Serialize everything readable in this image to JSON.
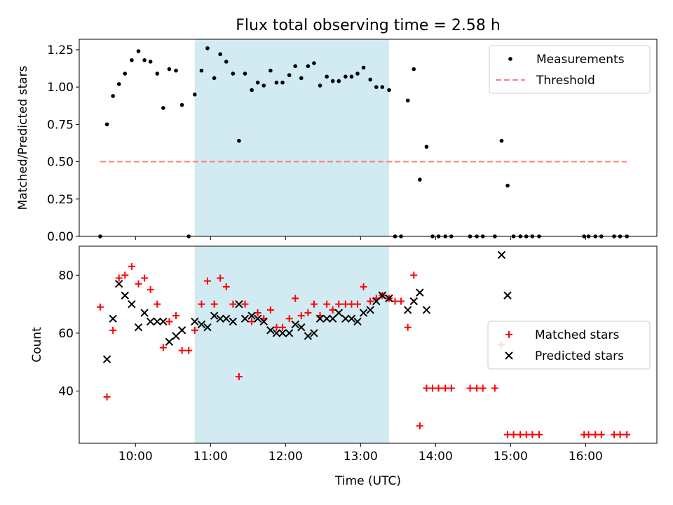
{
  "title": "Flux total observing time = 2.58 h",
  "chart_data": [
    {
      "type": "scatter",
      "title": "Flux total observing time = 2.58 h",
      "xlabel": "",
      "ylabel": "Matched/Predicted stars",
      "xlim": [
        9.25,
        16.95
      ],
      "ylim": [
        0,
        1.32
      ],
      "yticks": [
        0.0,
        0.25,
        0.5,
        0.75,
        1.0,
        1.25
      ],
      "ytick_labels": [
        "0.00",
        "0.25",
        "0.50",
        "0.75",
        "1.00",
        "1.25"
      ],
      "shaded_interval": {
        "x": [
          10.79,
          13.38
        ],
        "color": "#add8e6"
      },
      "legend": {
        "position": "top-right",
        "entries": [
          "Measurements",
          "Threshold"
        ]
      },
      "series": [
        {
          "name": "Measurements",
          "marker": "dot",
          "color": "#000000",
          "points": [
            [
              9.53,
              0.0
            ],
            [
              9.62,
              0.75
            ],
            [
              9.7,
              0.94
            ],
            [
              9.78,
              1.02
            ],
            [
              9.86,
              1.09
            ],
            [
              9.95,
              1.18
            ],
            [
              10.04,
              1.24
            ],
            [
              10.12,
              1.18
            ],
            [
              10.2,
              1.17
            ],
            [
              10.29,
              1.09
            ],
            [
              10.37,
              0.86
            ],
            [
              10.45,
              1.12
            ],
            [
              10.54,
              1.11
            ],
            [
              10.62,
              0.88
            ],
            [
              10.71,
              0.0
            ],
            [
              10.79,
              0.95
            ],
            [
              10.88,
              1.11
            ],
            [
              10.96,
              1.26
            ],
            [
              11.05,
              1.06
            ],
            [
              11.13,
              1.22
            ],
            [
              11.21,
              1.17
            ],
            [
              11.3,
              1.09
            ],
            [
              11.38,
              0.64
            ],
            [
              11.46,
              1.09
            ],
            [
              11.55,
              0.98
            ],
            [
              11.63,
              1.03
            ],
            [
              11.71,
              1.01
            ],
            [
              11.8,
              1.11
            ],
            [
              11.88,
              1.03
            ],
            [
              11.96,
              1.03
            ],
            [
              12.05,
              1.08
            ],
            [
              12.13,
              1.14
            ],
            [
              12.21,
              1.06
            ],
            [
              12.3,
              1.14
            ],
            [
              12.38,
              1.16
            ],
            [
              12.46,
              1.01
            ],
            [
              12.55,
              1.07
            ],
            [
              12.63,
              1.04
            ],
            [
              12.71,
              1.04
            ],
            [
              12.8,
              1.07
            ],
            [
              12.88,
              1.07
            ],
            [
              12.96,
              1.09
            ],
            [
              13.04,
              1.13
            ],
            [
              13.13,
              1.05
            ],
            [
              13.21,
              1.0
            ],
            [
              13.29,
              1.0
            ],
            [
              13.38,
              0.98
            ],
            [
              13.46,
              0.0
            ],
            [
              13.54,
              0.0
            ],
            [
              13.63,
              0.91
            ],
            [
              13.71,
              1.12
            ],
            [
              13.79,
              0.38
            ],
            [
              13.88,
              0.6
            ],
            [
              13.96,
              0.0
            ],
            [
              14.04,
              0.0
            ],
            [
              14.13,
              0.0
            ],
            [
              14.21,
              0.0
            ],
            [
              14.46,
              0.0
            ],
            [
              14.55,
              0.0
            ],
            [
              14.63,
              0.0
            ],
            [
              14.79,
              0.0
            ],
            [
              14.88,
              0.64
            ],
            [
              14.96,
              0.34
            ],
            [
              15.04,
              0.0
            ],
            [
              15.13,
              0.0
            ],
            [
              15.21,
              0.0
            ],
            [
              15.29,
              0.0
            ],
            [
              15.38,
              0.0
            ],
            [
              15.98,
              0.0
            ],
            [
              16.04,
              0.0
            ],
            [
              16.13,
              0.0
            ],
            [
              16.21,
              0.0
            ],
            [
              16.38,
              0.0
            ],
            [
              16.46,
              0.0
            ],
            [
              16.55,
              0.0
            ]
          ]
        },
        {
          "name": "Threshold",
          "style": "dashed",
          "color": "#ff7f7f",
          "x": [
            9.53,
            16.55
          ],
          "y": [
            0.5,
            0.5
          ]
        }
      ]
    },
    {
      "type": "scatter",
      "xlabel": "Time (UTC)",
      "ylabel": "Count",
      "xlim": [
        9.25,
        16.95
      ],
      "ylim": [
        22,
        90
      ],
      "yticks": [
        40,
        60,
        80
      ],
      "ytick_labels": [
        "40",
        "60",
        "80"
      ],
      "xticks": [
        10,
        11,
        12,
        13,
        14,
        15,
        16
      ],
      "xtick_labels": [
        "10:00",
        "11:00",
        "12:00",
        "13:00",
        "14:00",
        "15:00",
        "16:00"
      ],
      "shaded_interval": {
        "x": [
          10.79,
          13.38
        ],
        "color": "#add8e6"
      },
      "legend": {
        "position": "center-right",
        "entries": [
          "Matched stars",
          "Predicted stars"
        ]
      },
      "series": [
        {
          "name": "Matched stars",
          "marker": "plus",
          "color": "#ff0000",
          "points": [
            [
              9.53,
              69
            ],
            [
              9.62,
              38
            ],
            [
              9.7,
              61
            ],
            [
              9.78,
              79
            ],
            [
              9.86,
              80
            ],
            [
              9.95,
              83
            ],
            [
              10.04,
              77
            ],
            [
              10.12,
              79
            ],
            [
              10.2,
              75
            ],
            [
              10.29,
              70
            ],
            [
              10.37,
              55
            ],
            [
              10.45,
              64
            ],
            [
              10.54,
              66
            ],
            [
              10.62,
              54
            ],
            [
              10.71,
              54
            ],
            [
              10.79,
              61
            ],
            [
              10.88,
              70
            ],
            [
              10.96,
              78
            ],
            [
              11.05,
              70
            ],
            [
              11.13,
              79
            ],
            [
              11.21,
              76
            ],
            [
              11.3,
              70
            ],
            [
              11.38,
              45
            ],
            [
              11.46,
              70
            ],
            [
              11.55,
              64
            ],
            [
              11.63,
              67
            ],
            [
              11.71,
              65
            ],
            [
              11.8,
              68
            ],
            [
              11.88,
              62
            ],
            [
              11.96,
              62
            ],
            [
              12.05,
              65
            ],
            [
              12.13,
              72
            ],
            [
              12.21,
              66
            ],
            [
              12.3,
              67
            ],
            [
              12.38,
              70
            ],
            [
              12.46,
              66
            ],
            [
              12.55,
              70
            ],
            [
              12.63,
              68
            ],
            [
              12.71,
              70
            ],
            [
              12.8,
              70
            ],
            [
              12.88,
              70
            ],
            [
              12.96,
              70
            ],
            [
              13.04,
              76
            ],
            [
              13.13,
              71
            ],
            [
              13.21,
              72
            ],
            [
              13.29,
              73
            ],
            [
              13.38,
              72
            ],
            [
              13.46,
              71
            ],
            [
              13.54,
              71
            ],
            [
              13.63,
              62
            ],
            [
              13.71,
              80
            ],
            [
              13.79,
              28
            ],
            [
              13.88,
              41
            ],
            [
              13.96,
              41
            ],
            [
              14.04,
              41
            ],
            [
              14.13,
              41
            ],
            [
              14.21,
              41
            ],
            [
              14.46,
              41
            ],
            [
              14.55,
              41
            ],
            [
              14.63,
              41
            ],
            [
              14.79,
              41
            ],
            [
              14.88,
              56
            ],
            [
              14.96,
              25
            ],
            [
              15.04,
              25
            ],
            [
              15.13,
              25
            ],
            [
              15.21,
              25
            ],
            [
              15.29,
              25
            ],
            [
              15.38,
              25
            ],
            [
              15.98,
              25
            ],
            [
              16.04,
              25
            ],
            [
              16.13,
              25
            ],
            [
              16.21,
              25
            ],
            [
              16.38,
              25
            ],
            [
              16.46,
              25
            ],
            [
              16.55,
              25
            ]
          ]
        },
        {
          "name": "Predicted stars",
          "marker": "x",
          "color": "#000000",
          "points": [
            [
              9.62,
              51
            ],
            [
              9.7,
              65
            ],
            [
              9.78,
              77
            ],
            [
              9.86,
              73
            ],
            [
              9.95,
              70
            ],
            [
              10.04,
              62
            ],
            [
              10.12,
              67
            ],
            [
              10.2,
              64
            ],
            [
              10.29,
              64
            ],
            [
              10.37,
              64
            ],
            [
              10.45,
              57
            ],
            [
              10.54,
              59
            ],
            [
              10.62,
              61
            ],
            [
              10.79,
              64
            ],
            [
              10.88,
              63
            ],
            [
              10.96,
              62
            ],
            [
              11.05,
              66
            ],
            [
              11.13,
              65
            ],
            [
              11.21,
              65
            ],
            [
              11.3,
              64
            ],
            [
              11.38,
              70
            ],
            [
              11.46,
              65
            ],
            [
              11.55,
              66
            ],
            [
              11.63,
              65
            ],
            [
              11.71,
              64
            ],
            [
              11.8,
              61
            ],
            [
              11.88,
              60
            ],
            [
              11.96,
              60
            ],
            [
              12.05,
              60
            ],
            [
              12.13,
              63
            ],
            [
              12.21,
              62
            ],
            [
              12.3,
              59
            ],
            [
              12.38,
              60
            ],
            [
              12.46,
              65
            ],
            [
              12.55,
              65
            ],
            [
              12.63,
              65
            ],
            [
              12.71,
              67
            ],
            [
              12.8,
              65
            ],
            [
              12.88,
              65
            ],
            [
              12.96,
              64
            ],
            [
              13.04,
              67
            ],
            [
              13.13,
              68
            ],
            [
              13.21,
              71
            ],
            [
              13.29,
              73
            ],
            [
              13.38,
              72
            ],
            [
              13.63,
              68
            ],
            [
              13.71,
              71
            ],
            [
              13.79,
              74
            ],
            [
              13.88,
              68
            ],
            [
              14.88,
              87
            ],
            [
              14.96,
              73
            ]
          ]
        }
      ]
    }
  ]
}
